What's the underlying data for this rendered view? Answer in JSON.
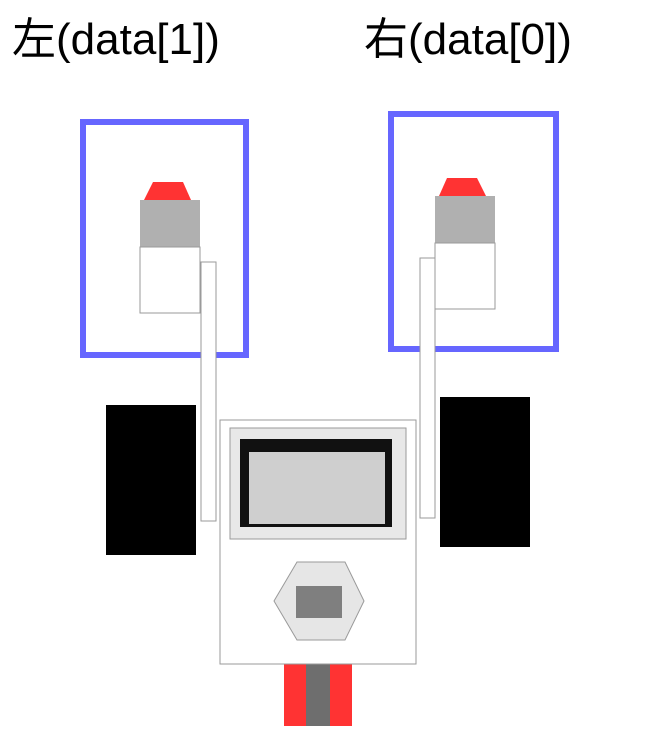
{
  "labels": {
    "left": "左(data[1])",
    "right": "右(data[0])"
  },
  "colors": {
    "sensor_box": "#6666ff",
    "sensor_tip": "#ff3333",
    "sensor_cap": "#b0b0b0",
    "wheel": "#000000",
    "body_fill": "#ffffff",
    "body_stroke": "#9a9a9a",
    "screen_fill": "#cfcfcf",
    "screen_frame": "#111111",
    "hex_fill": "#e6e6e6",
    "hex_button": "#7f7f7f",
    "rear_red": "#ff3333",
    "rear_gray": "#6e6e6e"
  },
  "icons": {
    "left_sensor": "color-sensor-icon",
    "right_sensor": "color-sensor-icon",
    "hub_button": "hexagon-button-icon"
  }
}
